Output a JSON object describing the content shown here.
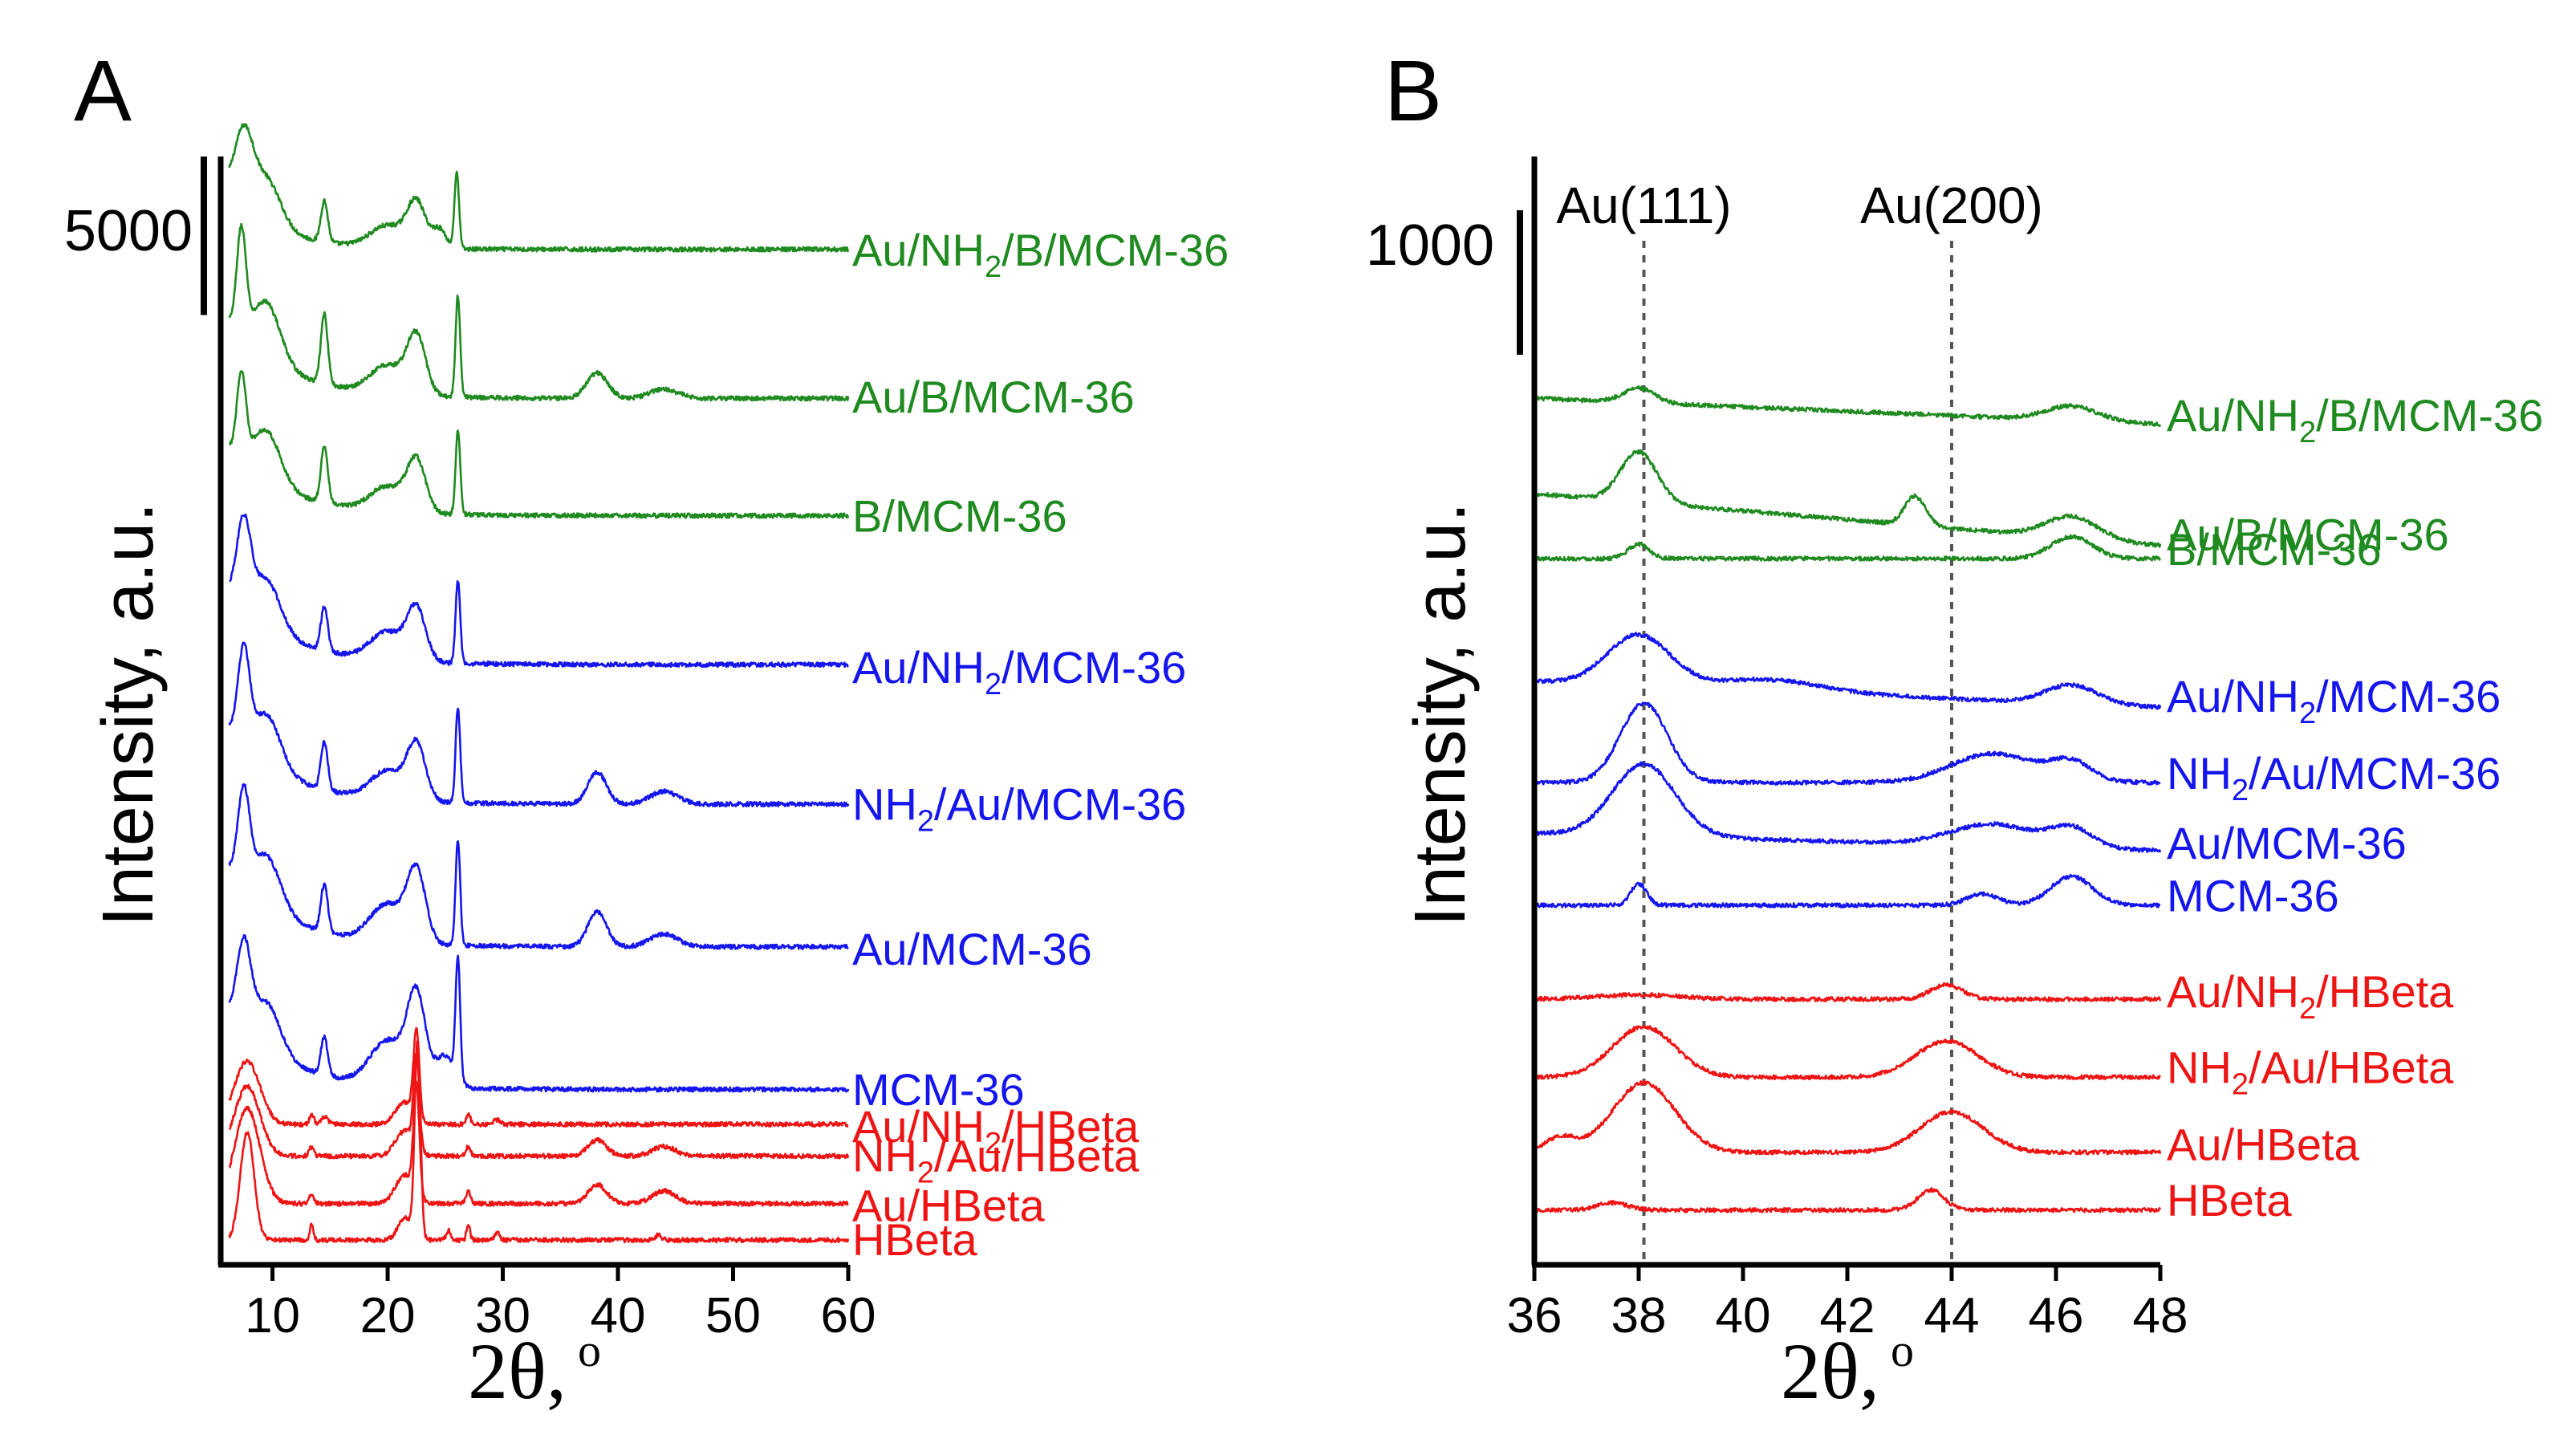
{
  "colors": {
    "green": "#1f8a1f",
    "blue": "#1515ee",
    "red": "#ee1414",
    "axis": "#000000",
    "ref": "#555555"
  },
  "chart_data": [
    {
      "panel": "A",
      "type": "line",
      "xlabel_prefix": "2θ,",
      "xlabel_sup": "o",
      "ylabel": "Intensity, a.u.",
      "xlim": [
        5.5,
        60
      ],
      "xticks": [
        "10",
        "20",
        "30",
        "40",
        "50",
        "60"
      ],
      "xtick_values": [
        10,
        20,
        30,
        40,
        50,
        60
      ],
      "scale_bar_label": "5000",
      "scale_bar_value": 5000,
      "series": [
        {
          "name": "Au/NH2/B/MCM-36",
          "label": [
            "Au/NH",
            "2",
            "/B/MCM-36"
          ],
          "color": "green",
          "baseline": 31500,
          "peaks": [
            [
              7.5,
              2200,
              0.8
            ],
            [
              9.5,
              1400,
              1.2
            ],
            [
              14.5,
              1300,
              0.3
            ],
            [
              20,
              700,
              1.5
            ],
            [
              22.5,
              1400,
              0.8
            ],
            [
              26,
              2400,
              0.2
            ],
            [
              24.5,
              600,
              0.6
            ]
          ],
          "bg": [
            [
              6,
              2000,
              4
            ]
          ]
        },
        {
          "name": "Au/B/MCM-36",
          "label": [
            "Au/B/MCM-36"
          ],
          "color": "green",
          "baseline": 26800,
          "peaks": [
            [
              7.3,
              3200,
              0.4
            ],
            [
              9.5,
              1800,
              1.2
            ],
            [
              14.5,
              2200,
              0.3
            ],
            [
              20,
              900,
              1.5
            ],
            [
              22.5,
              1800,
              0.8
            ],
            [
              26.1,
              3200,
              0.2
            ],
            [
              38.2,
              800,
              0.9
            ],
            [
              44,
              300,
              1.2
            ]
          ],
          "bg": [
            [
              6,
              2500,
              5
            ]
          ]
        },
        {
          "name": "B/MCM-36",
          "label": [
            "B/MCM-36"
          ],
          "color": "green",
          "baseline": 23100,
          "peaks": [
            [
              7.3,
              2600,
              0.4
            ],
            [
              9.5,
              1600,
              1.2
            ],
            [
              14.5,
              1800,
              0.3
            ],
            [
              20,
              800,
              1.5
            ],
            [
              22.5,
              1600,
              0.8
            ],
            [
              26.1,
              2700,
              0.2
            ]
          ],
          "bg": [
            [
              6,
              2200,
              5
            ]
          ]
        },
        {
          "name": "Au/NH2/MCM-36",
          "label": [
            "Au/NH",
            "2",
            "/MCM-36"
          ],
          "color": "blue",
          "baseline": 18400,
          "peaks": [
            [
              7.5,
              2600,
              0.6
            ],
            [
              9.5,
              1500,
              1.2
            ],
            [
              14.5,
              1400,
              0.3
            ],
            [
              20,
              900,
              1.5
            ],
            [
              22.5,
              1600,
              0.8
            ],
            [
              26.1,
              2600,
              0.2
            ]
          ],
          "bg": [
            [
              6,
              2400,
              5
            ]
          ]
        },
        {
          "name": "NH2/Au/MCM-36",
          "label": [
            "NH",
            "2",
            "/Au/MCM-36"
          ],
          "color": "blue",
          "baseline": 14000,
          "peaks": [
            [
              7.5,
              2800,
              0.5
            ],
            [
              9.5,
              1600,
              1.2
            ],
            [
              14.5,
              1500,
              0.3
            ],
            [
              20,
              900,
              1.5
            ],
            [
              22.5,
              1700,
              0.8
            ],
            [
              26.1,
              3000,
              0.2
            ],
            [
              38.2,
              1000,
              0.8
            ],
            [
              44,
              400,
              1.2
            ]
          ],
          "bg": [
            [
              6,
              2500,
              5
            ]
          ]
        },
        {
          "name": "Au/MCM-36",
          "label": [
            "Au/MCM-36"
          ],
          "color": "blue",
          "baseline": 9500,
          "peaks": [
            [
              7.5,
              2800,
              0.5
            ],
            [
              9.5,
              1600,
              1.2
            ],
            [
              14.5,
              1500,
              0.3
            ],
            [
              20,
              1200,
              1.5
            ],
            [
              22.5,
              2200,
              0.8
            ],
            [
              26.1,
              3300,
              0.2
            ],
            [
              38.2,
              1100,
              0.8
            ],
            [
              44,
              400,
              1.2
            ]
          ],
          "bg": [
            [
              6,
              2600,
              5
            ]
          ]
        },
        {
          "name": "MCM-36",
          "label": [
            "MCM-36"
          ],
          "color": "blue",
          "baseline": 5000,
          "peaks": [
            [
              7.5,
              2600,
              0.6
            ],
            [
              9.5,
              1500,
              1.2
            ],
            [
              14.5,
              1200,
              0.3
            ],
            [
              20,
              1400,
              1.5
            ],
            [
              22.5,
              2800,
              0.8
            ],
            [
              26.1,
              3800,
              0.2
            ],
            [
              25,
              1000,
              0.8
            ]
          ],
          "bg": [
            [
              6,
              2500,
              5
            ]
          ]
        },
        {
          "name": "Au/NH2/HBeta",
          "label": [
            "Au/NH",
            "2",
            "/HBeta"
          ],
          "color": "red",
          "baseline": 3900,
          "peaks": [
            [
              7.8,
              2000,
              1.1
            ],
            [
              13.4,
              300,
              0.2
            ],
            [
              14.5,
              250,
              0.3
            ],
            [
              21.5,
              700,
              0.8
            ],
            [
              22.5,
              2700,
              0.25
            ],
            [
              27,
              300,
              0.2
            ],
            [
              29.5,
              150,
              0.3
            ]
          ],
          "bg": []
        },
        {
          "name": "NH2/Au/HBeta",
          "label": [
            "NH",
            "2",
            "/Au/HBeta"
          ],
          "color": "red",
          "baseline": 2900,
          "peaks": [
            [
              7.8,
              2200,
              1.1
            ],
            [
              13.4,
              300,
              0.2
            ],
            [
              21.5,
              800,
              0.8
            ],
            [
              22.5,
              2900,
              0.25
            ],
            [
              27,
              300,
              0.2
            ],
            [
              38.2,
              500,
              0.8
            ],
            [
              44,
              300,
              1.0
            ]
          ],
          "bg": []
        },
        {
          "name": "Au/HBeta",
          "label": [
            "Au/HBeta"
          ],
          "color": "red",
          "baseline": 1400,
          "peaks": [
            [
              7.8,
              3000,
              1.1
            ],
            [
              13.4,
              300,
              0.2
            ],
            [
              21.5,
              900,
              0.8
            ],
            [
              22.5,
              3400,
              0.25
            ],
            [
              27,
              400,
              0.2
            ],
            [
              38.2,
              600,
              0.8
            ],
            [
              44,
              400,
              1.0
            ]
          ],
          "bg": []
        },
        {
          "name": "HBeta",
          "label": [
            "HBeta"
          ],
          "color": "red",
          "baseline": 250,
          "peaks": [
            [
              7.8,
              3400,
              0.6
            ],
            [
              13.4,
              500,
              0.15
            ],
            [
              21.5,
              700,
              0.6
            ],
            [
              22.6,
              6200,
              0.25
            ],
            [
              25.3,
              300,
              0.2
            ],
            [
              27,
              500,
              0.15
            ],
            [
              29.5,
              250,
              0.2
            ],
            [
              43.5,
              150,
              0.3
            ]
          ],
          "bg": []
        }
      ]
    },
    {
      "panel": "B",
      "type": "line",
      "xlabel_prefix": "2θ,",
      "xlabel_sup": "o",
      "ylabel": "Intensity, a.u.",
      "xlim": [
        36,
        48
      ],
      "xticks": [
        "36",
        "38",
        "40",
        "42",
        "44",
        "46",
        "48"
      ],
      "xtick_values": [
        36,
        38,
        40,
        42,
        44,
        46,
        48
      ],
      "scale_bar_label": "1000",
      "scale_bar_value": 1000,
      "reference_lines": [
        {
          "label": "Au(111)",
          "x": 38.1
        },
        {
          "label": "Au(200)",
          "x": 44.0
        }
      ],
      "series": [
        {
          "name": "Au/NH2/B/MCM-36",
          "label": [
            "Au/NH",
            "2",
            "/B/MCM-36"
          ],
          "color": "green",
          "baseline": 5660,
          "slope": -15,
          "peaks": [
            [
              38,
              100,
              0.3
            ],
            [
              46.3,
              100,
              0.5
            ]
          ]
        },
        {
          "name": "Au/B/MCM-36",
          "label": [
            "Au/B/MCM-36"
          ],
          "color": "green",
          "baseline": 5000,
          "slope": -30,
          "peaks": [
            [
              38,
              350,
              0.35
            ],
            [
              43.3,
              200,
              0.2
            ],
            [
              46.3,
              150,
              0.5
            ]
          ]
        },
        {
          "name": "B/MCM-36",
          "label": [
            "B/MCM-36"
          ],
          "color": "green",
          "baseline": 4550,
          "slope": 0,
          "peaks": [
            [
              38,
              100,
              0.2
            ],
            [
              46.3,
              150,
              0.4
            ]
          ]
        },
        {
          "name": "Au/NH2/MCM-36",
          "label": [
            "Au/NH",
            "2",
            "/MCM-36"
          ],
          "color": "blue",
          "baseline": 3700,
          "slope": -15,
          "peaks": [
            [
              38,
              350,
              0.6
            ],
            [
              40.5,
              80,
              1.0
            ],
            [
              46.3,
              130,
              0.5
            ]
          ]
        },
        {
          "name": "NH2/Au/MCM-36",
          "label": [
            "NH",
            "2",
            "/Au/MCM-36"
          ],
          "color": "blue",
          "baseline": 3000,
          "slope": 0,
          "peaks": [
            [
              38.1,
              550,
              0.45
            ],
            [
              44.8,
              200,
              0.8
            ],
            [
              46.3,
              130,
              0.4
            ]
          ]
        },
        {
          "name": "Au/MCM-36",
          "label": [
            "Au/MCM-36"
          ],
          "color": "blue",
          "baseline": 2650,
          "slope": -10,
          "peaks": [
            [
              38.1,
              500,
              0.6
            ],
            [
              44.8,
              150,
              0.8
            ],
            [
              46.3,
              130,
              0.4
            ]
          ]
        },
        {
          "name": "MCM-36",
          "label": [
            "MCM-36"
          ],
          "color": "blue",
          "baseline": 2150,
          "slope": 0,
          "peaks": [
            [
              38,
              150,
              0.15
            ],
            [
              44.6,
              80,
              0.3
            ],
            [
              46.3,
              200,
              0.4
            ]
          ]
        },
        {
          "name": "Au/NH2/HBeta",
          "label": [
            "Au/NH",
            "2",
            "/HBeta"
          ],
          "color": "red",
          "baseline": 1500,
          "slope": 0,
          "peaks": [
            [
              38,
              30,
              0.8
            ],
            [
              43.9,
              100,
              0.3
            ]
          ]
        },
        {
          "name": "NH2/Au/HBeta",
          "label": [
            "NH",
            "2",
            "/Au/HBeta"
          ],
          "color": "red",
          "baseline": 960,
          "slope": 0,
          "peaks": [
            [
              38.1,
              350,
              0.6
            ],
            [
              43.9,
              250,
              0.6
            ]
          ]
        },
        {
          "name": "Au/HBeta",
          "label": [
            "Au/HBeta"
          ],
          "color": "red",
          "baseline": 440,
          "slope": 0,
          "peaks": [
            [
              38.1,
              480,
              0.6
            ],
            [
              44,
              280,
              0.6
            ],
            [
              36.5,
              100,
              0.3
            ]
          ]
        },
        {
          "name": "HBeta",
          "label": [
            "HBeta"
          ],
          "color": "red",
          "baseline": 40,
          "slope": 0,
          "peaks": [
            [
              37.5,
              50,
              0.3
            ],
            [
              43.6,
              140,
              0.25
            ]
          ]
        }
      ]
    }
  ],
  "panels": {
    "A": "A",
    "B": "B"
  }
}
